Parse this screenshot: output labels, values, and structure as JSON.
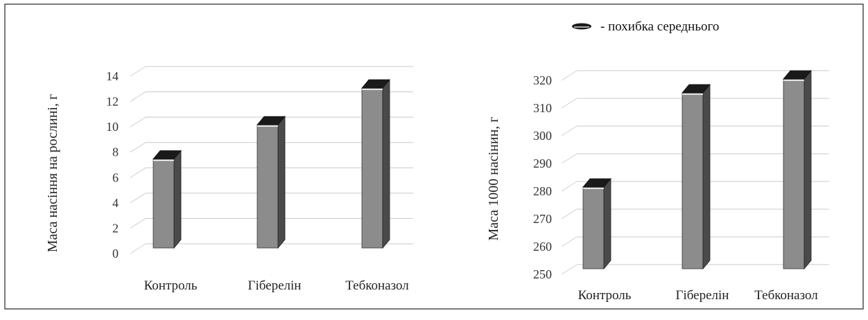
{
  "legend": {
    "label": "- похибка середнього",
    "colors": {
      "cap": "#1a1a1a",
      "bar_front": "#8c8c8c",
      "bar_side": "#4a4a4a"
    }
  },
  "chart_data": [
    {
      "type": "bar",
      "categories": [
        "Контроль",
        "Гіберелін",
        "Тебконазол"
      ],
      "values": [
        6.7,
        9.4,
        12.3
      ],
      "error": [
        0.3,
        0.3,
        0.3
      ],
      "ylabel": "Маса насіння на рослині, г",
      "xlabel": "",
      "ylim": [
        0,
        14
      ],
      "ytick_step": 2,
      "grid": true,
      "style": "3d-cylinder"
    },
    {
      "type": "bar",
      "categories": [
        "Контроль",
        "Гіберелін",
        "Тебконазол"
      ],
      "values": [
        278,
        312,
        317
      ],
      "error": [
        1.5,
        1.5,
        1.5
      ],
      "ylabel": "Маса 1000  насінин, г",
      "xlabel": "",
      "ylim": [
        250,
        320
      ],
      "ytick_step": 10,
      "grid": true,
      "style": "3d-cylinder",
      "legend_position": "top"
    }
  ]
}
